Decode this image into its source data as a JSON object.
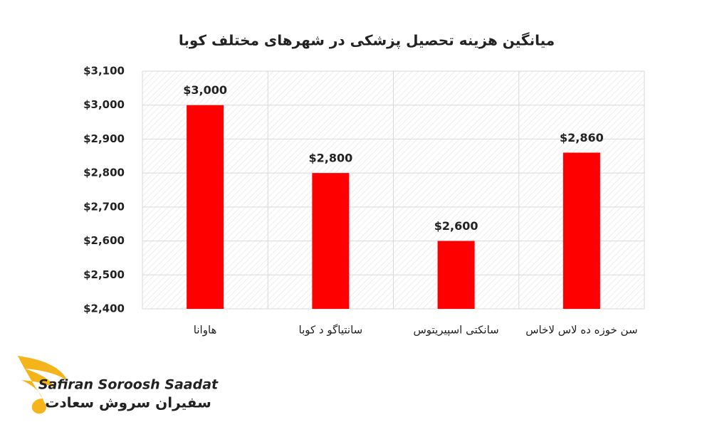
{
  "chart_data": {
    "type": "bar",
    "title": "میانگین هزینه تحصیل پزشکی در شهرهای مختلف کوبا",
    "categories": [
      "هاوانا",
      "سانتیاگو د کوبا",
      "سانکتی اسپیریتوس",
      "سن خوزه ده لاس لاخاس"
    ],
    "values": [
      3000,
      2800,
      2600,
      2860
    ],
    "value_labels": [
      "$3,000",
      "$2,800",
      "$2,600",
      "$2,860"
    ],
    "color": "#ff0000",
    "ylim": [
      2400,
      3100
    ],
    "yticks": [
      {
        "value": 2400,
        "label": "$2,400"
      },
      {
        "value": 2500,
        "label": "$2,500"
      },
      {
        "value": 2600,
        "label": "$2,600"
      },
      {
        "value": 2700,
        "label": "$2,700"
      },
      {
        "value": 2800,
        "label": "$2,800"
      },
      {
        "value": 2900,
        "label": "$2,900"
      },
      {
        "value": 3000,
        "label": "$3,000"
      },
      {
        "value": 3100,
        "label": "$3,100"
      }
    ],
    "grid": true
  },
  "logo": {
    "name_en": "Safiran Soroosh Saadat",
    "name_fa": "سفیران سروش سعادت"
  }
}
